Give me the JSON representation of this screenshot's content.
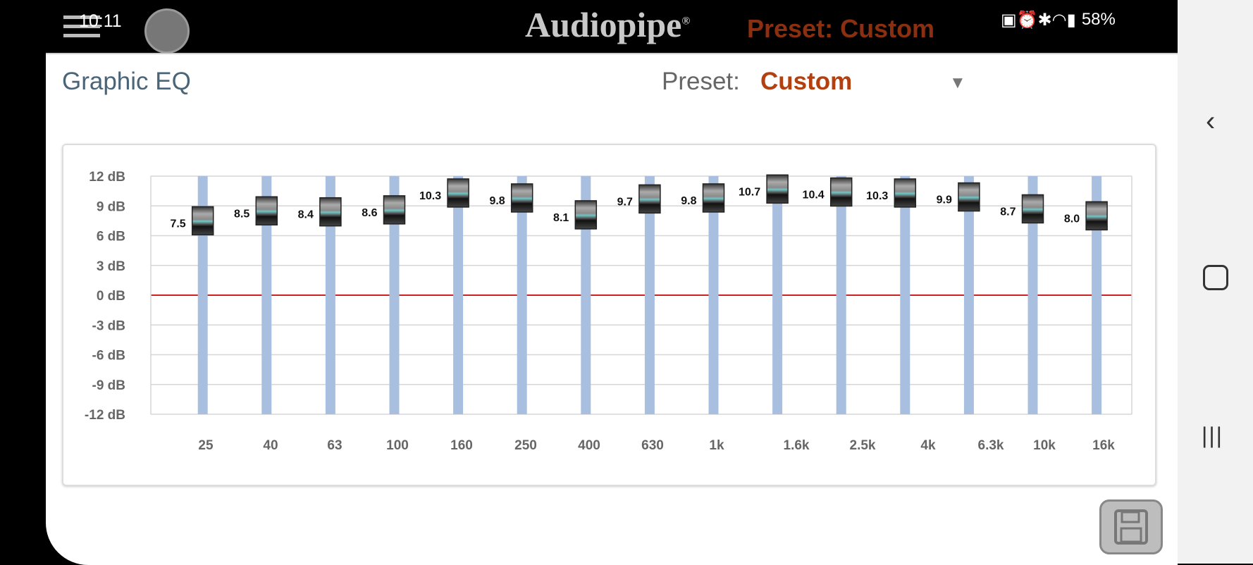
{
  "status_bar": {
    "time": "10:11",
    "battery": "58%",
    "icons": [
      "image-icon",
      "cloud-icon",
      "fan-icon",
      "battery-saver-icon",
      "alarm-icon",
      "bluetooth-icon",
      "wifi-icon",
      "signal-icon",
      "battery-charging-icon"
    ]
  },
  "header": {
    "logo": "Audiopipe",
    "ghost_preset": "Preset:  Custom"
  },
  "page": {
    "title": "Graphic EQ",
    "preset_label": "Preset:",
    "preset_value": "Custom",
    "dropdown_icon": "triangle-down-icon"
  },
  "colors": {
    "accent": "#b5400f",
    "title": "#4a6478",
    "slider_track": "#a9bfdf",
    "zero_line": "#cc2222"
  },
  "chart_data": {
    "type": "bar",
    "y_ticks": [
      "12 dB",
      "9 dB",
      "6 dB",
      "3 dB",
      "0 dB",
      "-3 dB",
      "-6 dB",
      "-9 dB",
      "-12 dB"
    ],
    "ylim": [
      -12,
      12
    ],
    "categories": [
      "25",
      "40",
      "63",
      "100",
      "160",
      "250",
      "400",
      "630",
      "1k",
      "1.6k",
      "2.5k",
      "4k",
      "6.3k",
      "10k",
      "16k"
    ],
    "values": [
      7.5,
      8.5,
      8.4,
      8.6,
      10.3,
      9.8,
      8.1,
      9.7,
      9.8,
      10.7,
      10.4,
      10.3,
      9.9,
      8.7,
      8.0
    ],
    "value_labels": [
      "7.5",
      "8.5",
      "8.4",
      "8.6",
      "10.3",
      "9.8",
      "8.1",
      "9.7",
      "9.8",
      "10.7",
      "10.4",
      "10.3",
      "9.9",
      "8.7",
      "8.0"
    ],
    "grid": true
  },
  "save_button": {
    "icon": "floppy-disk-icon"
  },
  "nav": {
    "back": "‹",
    "home": "○",
    "recents": "|||"
  }
}
